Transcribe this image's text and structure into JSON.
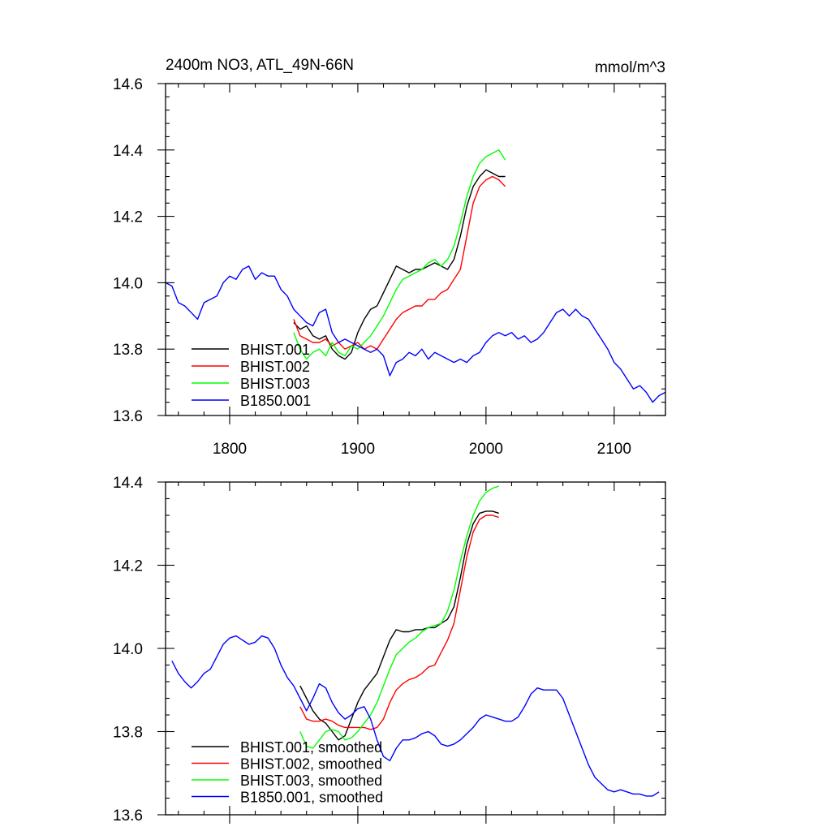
{
  "chart_data": [
    {
      "type": "line",
      "title": "2400m NO3, ATL_49N-66N",
      "units": "mmol/m^3",
      "xlim": [
        1750,
        2140
      ],
      "ylim": [
        13.6,
        14.6
      ],
      "xticks": [
        1800,
        1900,
        2000,
        2100
      ],
      "yticks": [
        13.6,
        13.8,
        14.0,
        14.2,
        14.4,
        14.6
      ],
      "legend_placement": "bottom-left",
      "series": [
        {
          "name": "BHIST.001",
          "color": "#000000",
          "x": [
            1850,
            1855,
            1860,
            1865,
            1870,
            1875,
            1880,
            1885,
            1890,
            1895,
            1900,
            1905,
            1910,
            1915,
            1920,
            1925,
            1930,
            1935,
            1940,
            1945,
            1950,
            1955,
            1960,
            1965,
            1970,
            1975,
            1980,
            1985,
            1990,
            1995,
            2000,
            2005,
            2010,
            2015
          ],
          "y": [
            13.88,
            13.86,
            13.87,
            13.84,
            13.83,
            13.84,
            13.8,
            13.78,
            13.77,
            13.79,
            13.85,
            13.89,
            13.92,
            13.93,
            13.97,
            14.01,
            14.05,
            14.04,
            14.03,
            14.04,
            14.04,
            14.05,
            14.06,
            14.05,
            14.04,
            14.07,
            14.14,
            14.23,
            14.29,
            14.32,
            14.34,
            14.33,
            14.32,
            14.32
          ]
        },
        {
          "name": "BHIST.002",
          "color": "#ff0000",
          "x": [
            1850,
            1855,
            1860,
            1865,
            1870,
            1875,
            1880,
            1885,
            1890,
            1895,
            1900,
            1905,
            1910,
            1915,
            1920,
            1925,
            1930,
            1935,
            1940,
            1945,
            1950,
            1955,
            1960,
            1965,
            1970,
            1975,
            1980,
            1985,
            1990,
            1995,
            2000,
            2005,
            2010,
            2015
          ],
          "y": [
            13.89,
            13.84,
            13.83,
            13.82,
            13.82,
            13.83,
            13.81,
            13.82,
            13.8,
            13.81,
            13.82,
            13.8,
            13.81,
            13.8,
            13.83,
            13.86,
            13.89,
            13.91,
            13.92,
            13.93,
            13.93,
            13.95,
            13.95,
            13.97,
            13.98,
            14.01,
            14.04,
            14.14,
            14.24,
            14.29,
            14.31,
            14.32,
            14.31,
            14.29
          ]
        },
        {
          "name": "BHIST.003",
          "color": "#00ff00",
          "x": [
            1850,
            1855,
            1860,
            1865,
            1870,
            1875,
            1880,
            1885,
            1890,
            1895,
            1900,
            1905,
            1910,
            1915,
            1920,
            1925,
            1930,
            1935,
            1940,
            1945,
            1950,
            1955,
            1960,
            1965,
            1970,
            1975,
            1980,
            1985,
            1990,
            1995,
            2000,
            2005,
            2010,
            2015
          ],
          "y": [
            13.85,
            13.8,
            13.77,
            13.79,
            13.8,
            13.78,
            13.82,
            13.79,
            13.78,
            13.81,
            13.8,
            13.82,
            13.84,
            13.87,
            13.9,
            13.94,
            13.98,
            14.01,
            14.02,
            14.03,
            14.04,
            14.06,
            14.07,
            14.05,
            14.07,
            14.11,
            14.18,
            14.26,
            14.32,
            14.36,
            14.38,
            14.39,
            14.4,
            14.37
          ]
        },
        {
          "name": "B1850.001",
          "color": "#0000ff",
          "x": [
            1750,
            1755,
            1760,
            1765,
            1770,
            1775,
            1780,
            1785,
            1790,
            1795,
            1800,
            1805,
            1810,
            1815,
            1820,
            1825,
            1830,
            1835,
            1840,
            1845,
            1850,
            1855,
            1860,
            1865,
            1870,
            1875,
            1880,
            1885,
            1890,
            1895,
            1900,
            1905,
            1910,
            1915,
            1920,
            1925,
            1930,
            1935,
            1940,
            1945,
            1950,
            1955,
            1960,
            1965,
            1970,
            1975,
            1980,
            1985,
            1990,
            1995,
            2000,
            2005,
            2010,
            2015,
            2020,
            2025,
            2030,
            2035,
            2040,
            2045,
            2050,
            2055,
            2060,
            2065,
            2070,
            2075,
            2080,
            2085,
            2090,
            2095,
            2100,
            2105,
            2110,
            2115,
            2120,
            2125,
            2130,
            2135,
            2140
          ],
          "y": [
            14.0,
            13.99,
            13.94,
            13.93,
            13.91,
            13.89,
            13.94,
            13.95,
            13.96,
            14.0,
            14.02,
            14.01,
            14.04,
            14.05,
            14.01,
            14.03,
            14.02,
            14.02,
            13.98,
            13.96,
            13.92,
            13.9,
            13.88,
            13.87,
            13.91,
            13.92,
            13.85,
            13.82,
            13.83,
            13.82,
            13.81,
            13.8,
            13.79,
            13.8,
            13.78,
            13.72,
            13.76,
            13.77,
            13.79,
            13.78,
            13.8,
            13.77,
            13.79,
            13.78,
            13.77,
            13.76,
            13.77,
            13.76,
            13.78,
            13.79,
            13.82,
            13.84,
            13.85,
            13.84,
            13.85,
            13.83,
            13.84,
            13.82,
            13.83,
            13.85,
            13.88,
            13.91,
            13.92,
            13.9,
            13.92,
            13.9,
            13.89,
            13.86,
            13.83,
            13.8,
            13.76,
            13.74,
            13.71,
            13.68,
            13.69,
            13.67,
            13.64,
            13.66,
            13.67
          ]
        }
      ]
    },
    {
      "type": "line",
      "ylim": [
        13.6,
        14.4
      ],
      "yticks": [
        13.6,
        13.8,
        14.0,
        14.2,
        14.4
      ],
      "legend_placement": "bottom-left",
      "series": [
        {
          "name": "BHIST.001, smoothed",
          "color": "#000000",
          "x": [
            1855,
            1860,
            1865,
            1870,
            1875,
            1880,
            1885,
            1890,
            1895,
            1900,
            1905,
            1910,
            1915,
            1920,
            1925,
            1930,
            1935,
            1940,
            1945,
            1950,
            1955,
            1960,
            1965,
            1970,
            1975,
            1980,
            1985,
            1990,
            1995,
            2000,
            2005,
            2010
          ],
          "y": [
            13.91,
            13.88,
            13.85,
            13.83,
            13.82,
            13.8,
            13.78,
            13.79,
            13.83,
            13.87,
            13.9,
            13.92,
            13.94,
            13.98,
            14.02,
            14.045,
            14.04,
            14.04,
            14.045,
            14.045,
            14.05,
            14.05,
            14.06,
            14.07,
            14.1,
            14.17,
            14.25,
            14.3,
            14.325,
            14.33,
            14.33,
            14.325
          ]
        },
        {
          "name": "BHIST.002, smoothed",
          "color": "#ff0000",
          "x": [
            1855,
            1860,
            1865,
            1870,
            1875,
            1880,
            1885,
            1890,
            1895,
            1900,
            1905,
            1910,
            1915,
            1920,
            1925,
            1930,
            1935,
            1940,
            1945,
            1950,
            1955,
            1960,
            1965,
            1970,
            1975,
            1980,
            1985,
            1990,
            1995,
            2000,
            2005,
            2010
          ],
          "y": [
            13.86,
            13.83,
            13.825,
            13.825,
            13.83,
            13.825,
            13.815,
            13.81,
            13.81,
            13.81,
            13.81,
            13.805,
            13.81,
            13.83,
            13.87,
            13.9,
            13.915,
            13.925,
            13.93,
            13.94,
            13.955,
            13.96,
            13.99,
            14.02,
            14.06,
            14.14,
            14.22,
            14.28,
            14.31,
            14.32,
            14.32,
            14.315
          ]
        },
        {
          "name": "BHIST.003, smoothed",
          "color": "#00ff00",
          "x": [
            1855,
            1860,
            1865,
            1870,
            1875,
            1880,
            1885,
            1890,
            1895,
            1900,
            1905,
            1910,
            1915,
            1920,
            1925,
            1930,
            1935,
            1940,
            1945,
            1950,
            1955,
            1960,
            1965,
            1970,
            1975,
            1980,
            1985,
            1990,
            1995,
            2000,
            2005,
            2010
          ],
          "y": [
            13.8,
            13.765,
            13.76,
            13.78,
            13.8,
            13.805,
            13.8,
            13.78,
            13.785,
            13.8,
            13.82,
            13.84,
            13.87,
            13.91,
            13.95,
            13.985,
            14.0,
            14.015,
            14.025,
            14.04,
            14.05,
            14.055,
            14.06,
            14.09,
            14.14,
            14.21,
            14.27,
            14.32,
            14.355,
            14.375,
            14.385,
            14.39
          ]
        },
        {
          "name": "B1850.001, smoothed",
          "color": "#0000ff",
          "x": [
            1755,
            1760,
            1765,
            1770,
            1775,
            1780,
            1785,
            1790,
            1795,
            1800,
            1805,
            1810,
            1815,
            1820,
            1825,
            1830,
            1835,
            1840,
            1845,
            1850,
            1855,
            1860,
            1865,
            1870,
            1875,
            1880,
            1885,
            1890,
            1895,
            1900,
            1905,
            1910,
            1915,
            1920,
            1925,
            1930,
            1935,
            1940,
            1945,
            1950,
            1955,
            1960,
            1965,
            1970,
            1975,
            1980,
            1985,
            1990,
            1995,
            2000,
            2005,
            2010,
            2015,
            2020,
            2025,
            2030,
            2035,
            2040,
            2045,
            2050,
            2055,
            2060,
            2065,
            2070,
            2075,
            2080,
            2085,
            2090,
            2095,
            2100,
            2105,
            2110,
            2115,
            2120,
            2125,
            2130,
            2135
          ],
          "y": [
            13.97,
            13.94,
            13.92,
            13.905,
            13.92,
            13.94,
            13.95,
            13.98,
            14.01,
            14.025,
            14.03,
            14.02,
            14.01,
            14.015,
            14.03,
            14.025,
            14.0,
            13.96,
            13.93,
            13.91,
            13.88,
            13.85,
            13.88,
            13.915,
            13.905,
            13.87,
            13.845,
            13.83,
            13.84,
            13.855,
            13.86,
            13.83,
            13.78,
            13.74,
            13.73,
            13.76,
            13.78,
            13.78,
            13.785,
            13.795,
            13.8,
            13.79,
            13.77,
            13.765,
            13.77,
            13.78,
            13.795,
            13.81,
            13.83,
            13.84,
            13.835,
            13.83,
            13.825,
            13.825,
            13.835,
            13.86,
            13.89,
            13.905,
            13.9,
            13.9,
            13.9,
            13.88,
            13.84,
            13.8,
            13.76,
            13.72,
            13.69,
            13.675,
            13.66,
            13.655,
            13.66,
            13.655,
            13.65,
            13.65,
            13.645,
            13.645,
            13.655
          ]
        }
      ]
    }
  ]
}
